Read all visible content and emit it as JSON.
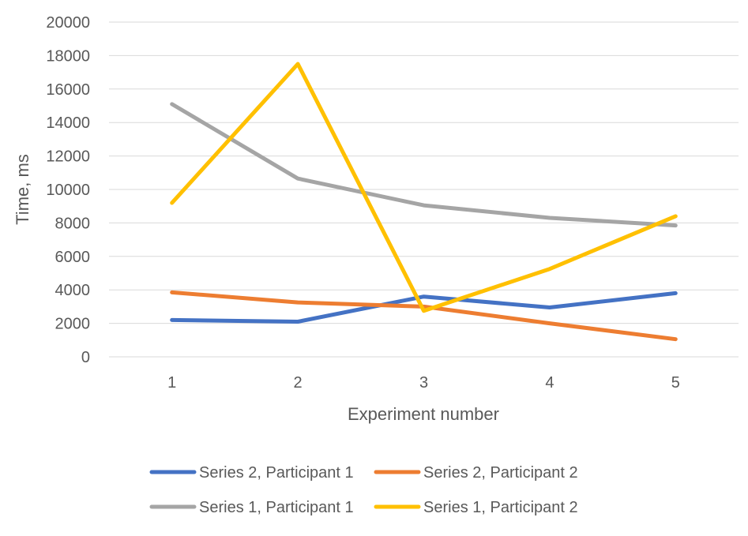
{
  "chart_data": {
    "type": "line",
    "title": "",
    "xlabel": "Experiment number",
    "ylabel": "Time, ms",
    "categories": [
      "1",
      "2",
      "3",
      "4",
      "5"
    ],
    "ylim": [
      0,
      20000
    ],
    "yticks": [
      "0",
      "2000",
      "4000",
      "6000",
      "8000",
      "10000",
      "12000",
      "14000",
      "16000",
      "18000",
      "20000"
    ],
    "grid": true,
    "legend_position": "bottom",
    "series": [
      {
        "name": "Series 2, Participant 1",
        "color": "#4472C4",
        "values": [
          2200,
          2100,
          3600,
          2950,
          3800
        ]
      },
      {
        "name": "Series 2, Participant 2",
        "color": "#ED7D31",
        "values": [
          3850,
          3250,
          3000,
          2000,
          1050
        ]
      },
      {
        "name": "Series 1, Participant 1",
        "color": "#A5A5A5",
        "values": [
          15100,
          10650,
          9050,
          8300,
          7850
        ]
      },
      {
        "name": "Series 1, Participant 2",
        "color": "#FFC000",
        "values": [
          9200,
          17500,
          2750,
          5250,
          8400
        ]
      }
    ]
  }
}
